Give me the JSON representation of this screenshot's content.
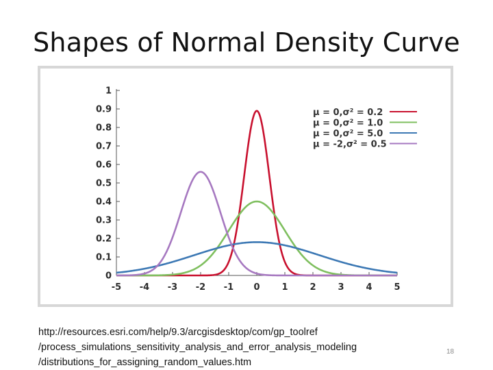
{
  "slide": {
    "title": "Shapes of Normal Density Curve",
    "source_lines": [
      "http://resources.esri.com/help/9.3/arcgisdesktop/com/gp_toolref",
      "/process_simulations_sensitivity_analysis_and_error_analysis_modeling",
      "/distributions_for_assigning_random_values.htm"
    ],
    "page_number": "18"
  },
  "chart_data": {
    "type": "line",
    "title": "",
    "xlabel": "",
    "ylabel": "",
    "xlim": [
      -5,
      5
    ],
    "ylim": [
      0,
      1
    ],
    "x_ticks": [
      -5,
      -4,
      -3,
      -2,
      -1,
      0,
      1,
      2,
      3,
      4,
      5
    ],
    "x_tick_labels": [
      "-5",
      "-4",
      "-3",
      "-2",
      "-1",
      "0",
      "1",
      "2",
      "3",
      "4",
      "5"
    ],
    "y_ticks": [
      0,
      0.1,
      0.2,
      0.3,
      0.4,
      0.5,
      0.6,
      0.7,
      0.8,
      0.9,
      1
    ],
    "y_tick_labels": [
      "0",
      "0.1",
      "0.2",
      "0.3",
      "0.4",
      "0.5",
      "0.6",
      "0.7",
      "0.8",
      "0.9",
      "1"
    ],
    "grid": false,
    "legend_position": "top-right",
    "series": [
      {
        "name": "μ = 0,σ² = 0.2",
        "mean": 0,
        "variance": 0.2,
        "peak": 0.89,
        "color": "#c8102e"
      },
      {
        "name": "μ = 0,σ² = 1.0",
        "mean": 0,
        "variance": 1.0,
        "peak": 0.4,
        "color": "#7fbf5f"
      },
      {
        "name": "μ = 0,σ² = 5.0",
        "mean": 0,
        "variance": 5.0,
        "peak": 0.18,
        "color": "#3c78b4"
      },
      {
        "name": "μ = -2,σ² = 0.5",
        "mean": -2,
        "variance": 0.5,
        "peak": 0.56,
        "color": "#a678c0"
      }
    ]
  }
}
